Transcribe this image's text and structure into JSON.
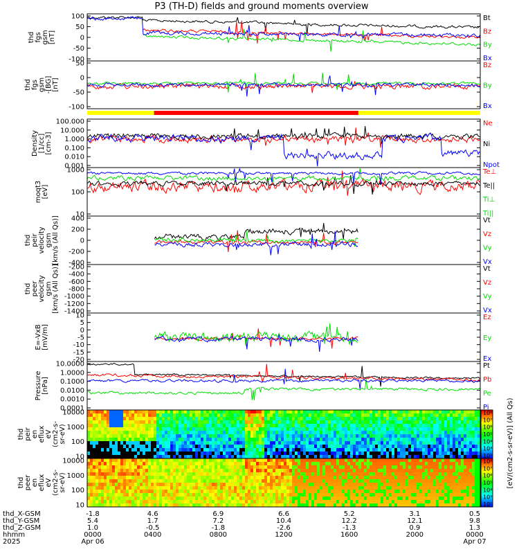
{
  "title": "P3 (TH-D) fields and ground moments overview",
  "colors": {
    "black": "#000000",
    "red": "#ff0000",
    "green": "#00dd00",
    "blue": "#0000ff",
    "yellow": "#ffff00",
    "orange": "#ff8800"
  },
  "chart_data": [
    {
      "type": "line",
      "panel": "fgs_gsm",
      "ylabel_lines": [
        "thd",
        "fgs",
        "gsm",
        "[nT]"
      ],
      "ylim": [
        -100,
        100
      ],
      "yticks": [
        "100",
        "50",
        "0",
        "-50",
        "-100"
      ],
      "series": [
        {
          "name": "Bt",
          "color": "black"
        },
        {
          "name": "Bz",
          "color": "red"
        },
        {
          "name": "By",
          "color": "green"
        },
        {
          "name": "Bx",
          "color": "blue"
        }
      ]
    },
    {
      "type": "line",
      "panel": "fgs_gsm_sm",
      "ylabel_lines": [
        "thd",
        "fgs",
        "gsm",
        "-[BG]",
        "[nT]"
      ],
      "ylim": [
        -120,
        50
      ],
      "yticks": [
        "50",
        "0",
        "-50",
        "-100"
      ],
      "series": [
        {
          "name": "Bz",
          "color": "red"
        },
        {
          "name": "By",
          "color": "green"
        },
        {
          "name": "Bx",
          "color": "blue"
        }
      ]
    },
    {
      "type": "line",
      "panel": "density",
      "ylabel_lines": [
        "Density",
        "[1/cc]",
        "[cm-3]"
      ],
      "scale": "log",
      "yticks": [
        "100.000",
        "10.000",
        "1.000",
        "0.100",
        "0.010",
        "0.001"
      ],
      "series": [
        {
          "name": "Ne",
          "color": "red"
        },
        {
          "name": "Ni",
          "color": "black"
        },
        {
          "name": "Npot",
          "color": "blue"
        }
      ]
    },
    {
      "type": "line",
      "panel": "temperature",
      "ylabel_lines": [
        "moqt3",
        "[eV]"
      ],
      "scale": "log",
      "yticks": [
        "1000",
        "100",
        "10"
      ],
      "series": [
        {
          "name": "Te⊥",
          "color": "red"
        },
        {
          "name": "Te||",
          "color": "black"
        },
        {
          "name": "Ti⊥",
          "color": "green"
        },
        {
          "name": "Ti||",
          "color": "green"
        }
      ]
    },
    {
      "type": "line",
      "panel": "peir_velocity",
      "ylabel_lines": [
        "thd",
        "peir",
        "velocity",
        "gsm",
        "[km/s (All Qs)]"
      ],
      "ylim": [
        -400,
        500
      ],
      "yticks": [
        "400",
        "200",
        "0",
        "-200",
        "-400"
      ],
      "series": [
        {
          "name": "Vt",
          "color": "black"
        },
        {
          "name": "Vz",
          "color": "red"
        },
        {
          "name": "Vy",
          "color": "green"
        },
        {
          "name": "Vx",
          "color": "blue"
        }
      ]
    },
    {
      "type": "line",
      "panel": "peer_velocity",
      "ylabel_lines": [
        "thd",
        "peer",
        "velocity",
        "gsm",
        "[km/s (All Qs)]"
      ],
      "ylim": [
        -1400,
        -200
      ],
      "yticks": [
        "-200",
        "-400",
        "-600",
        "-800",
        "-1000",
        "-1200",
        "-1400"
      ],
      "series": [
        {
          "name": "Vt",
          "color": "black"
        },
        {
          "name": "Vz",
          "color": "red"
        },
        {
          "name": "Vy",
          "color": "green"
        },
        {
          "name": "Vx",
          "color": "blue"
        }
      ]
    },
    {
      "type": "line",
      "panel": "efield",
      "ylabel_lines": [
        "E=-VxB",
        "[mV/m]"
      ],
      "ylim": [
        -20,
        10
      ],
      "yticks": [
        "10",
        "5",
        "0",
        "-5",
        "-10",
        "-15",
        "-20"
      ],
      "series": [
        {
          "name": "Ez",
          "color": "red"
        },
        {
          "name": "Ey",
          "color": "green"
        },
        {
          "name": "Ex",
          "color": "blue"
        }
      ]
    },
    {
      "type": "line",
      "panel": "pressure",
      "ylabel_lines": [
        "Pressure",
        "[nPa]"
      ],
      "scale": "log",
      "yticks": [
        "10.0000",
        "1.0000",
        "0.1000",
        "0.0100",
        "0.0010",
        "0.0001"
      ],
      "series": [
        {
          "name": "Pt",
          "color": "black"
        },
        {
          "name": "Pb",
          "color": "red"
        },
        {
          "name": "Pe",
          "color": "green"
        },
        {
          "name": "Pi",
          "color": "blue"
        }
      ]
    },
    {
      "type": "heatmap",
      "panel": "peir_eflux",
      "ylabel_lines": [
        "thd",
        "peir",
        "en",
        "eflux",
        "eV",
        "(cm2-s-",
        "sr-eV)"
      ],
      "scale": "log",
      "yticks": [
        "10000",
        "1000",
        "100",
        "10"
      ]
    },
    {
      "type": "heatmap",
      "panel": "peer_eflux",
      "ylabel_lines": [
        "thd",
        "peer",
        "en",
        "eflux",
        "eV",
        "(cm2-s-",
        "sr-eV)"
      ],
      "scale": "log",
      "yticks": [
        "10000",
        "1000",
        "100",
        "10"
      ]
    }
  ],
  "colorbar": {
    "label": "[eV/(cm2-s-sr-eV)] (All Qs)",
    "ticks_top": [
      "10⁸",
      "10⁷",
      "10⁶",
      "10⁵",
      "10⁴",
      "10³",
      "10²"
    ],
    "ticks_bottom": [
      "10⁸",
      "10⁷",
      "10⁶",
      "10⁵",
      "10⁴",
      "10³",
      "10²"
    ]
  },
  "orbit_bar": {
    "segments": [
      {
        "color": "yellow"
      },
      {
        "color": "red"
      },
      {
        "color": "yellow"
      }
    ]
  },
  "xaxis": {
    "row_labels": [
      "thd_X-GSM",
      "thd_Y-GSM",
      "thd_Z-GSM",
      "hhmm",
      "2025"
    ],
    "ticks": [
      {
        "values": [
          "-1.8",
          "5.4",
          "1.0",
          "0000",
          "Apr 06"
        ]
      },
      {
        "values": [
          "4.6",
          "1.7",
          "-0.5",
          "0400",
          ""
        ]
      },
      {
        "values": [
          "6.9",
          "7.2",
          "-1.8",
          "0800",
          ""
        ]
      },
      {
        "values": [
          "6.6",
          "10.4",
          "-2.6",
          "1200",
          ""
        ]
      },
      {
        "values": [
          "5.2",
          "12.2",
          "-1.3",
          "1600",
          ""
        ]
      },
      {
        "values": [
          "3.1",
          "12.1",
          "0.9",
          "2000",
          ""
        ]
      },
      {
        "values": [
          "0.5",
          "9.8",
          "1.3",
          "0000",
          "Apr 07"
        ]
      }
    ]
  }
}
